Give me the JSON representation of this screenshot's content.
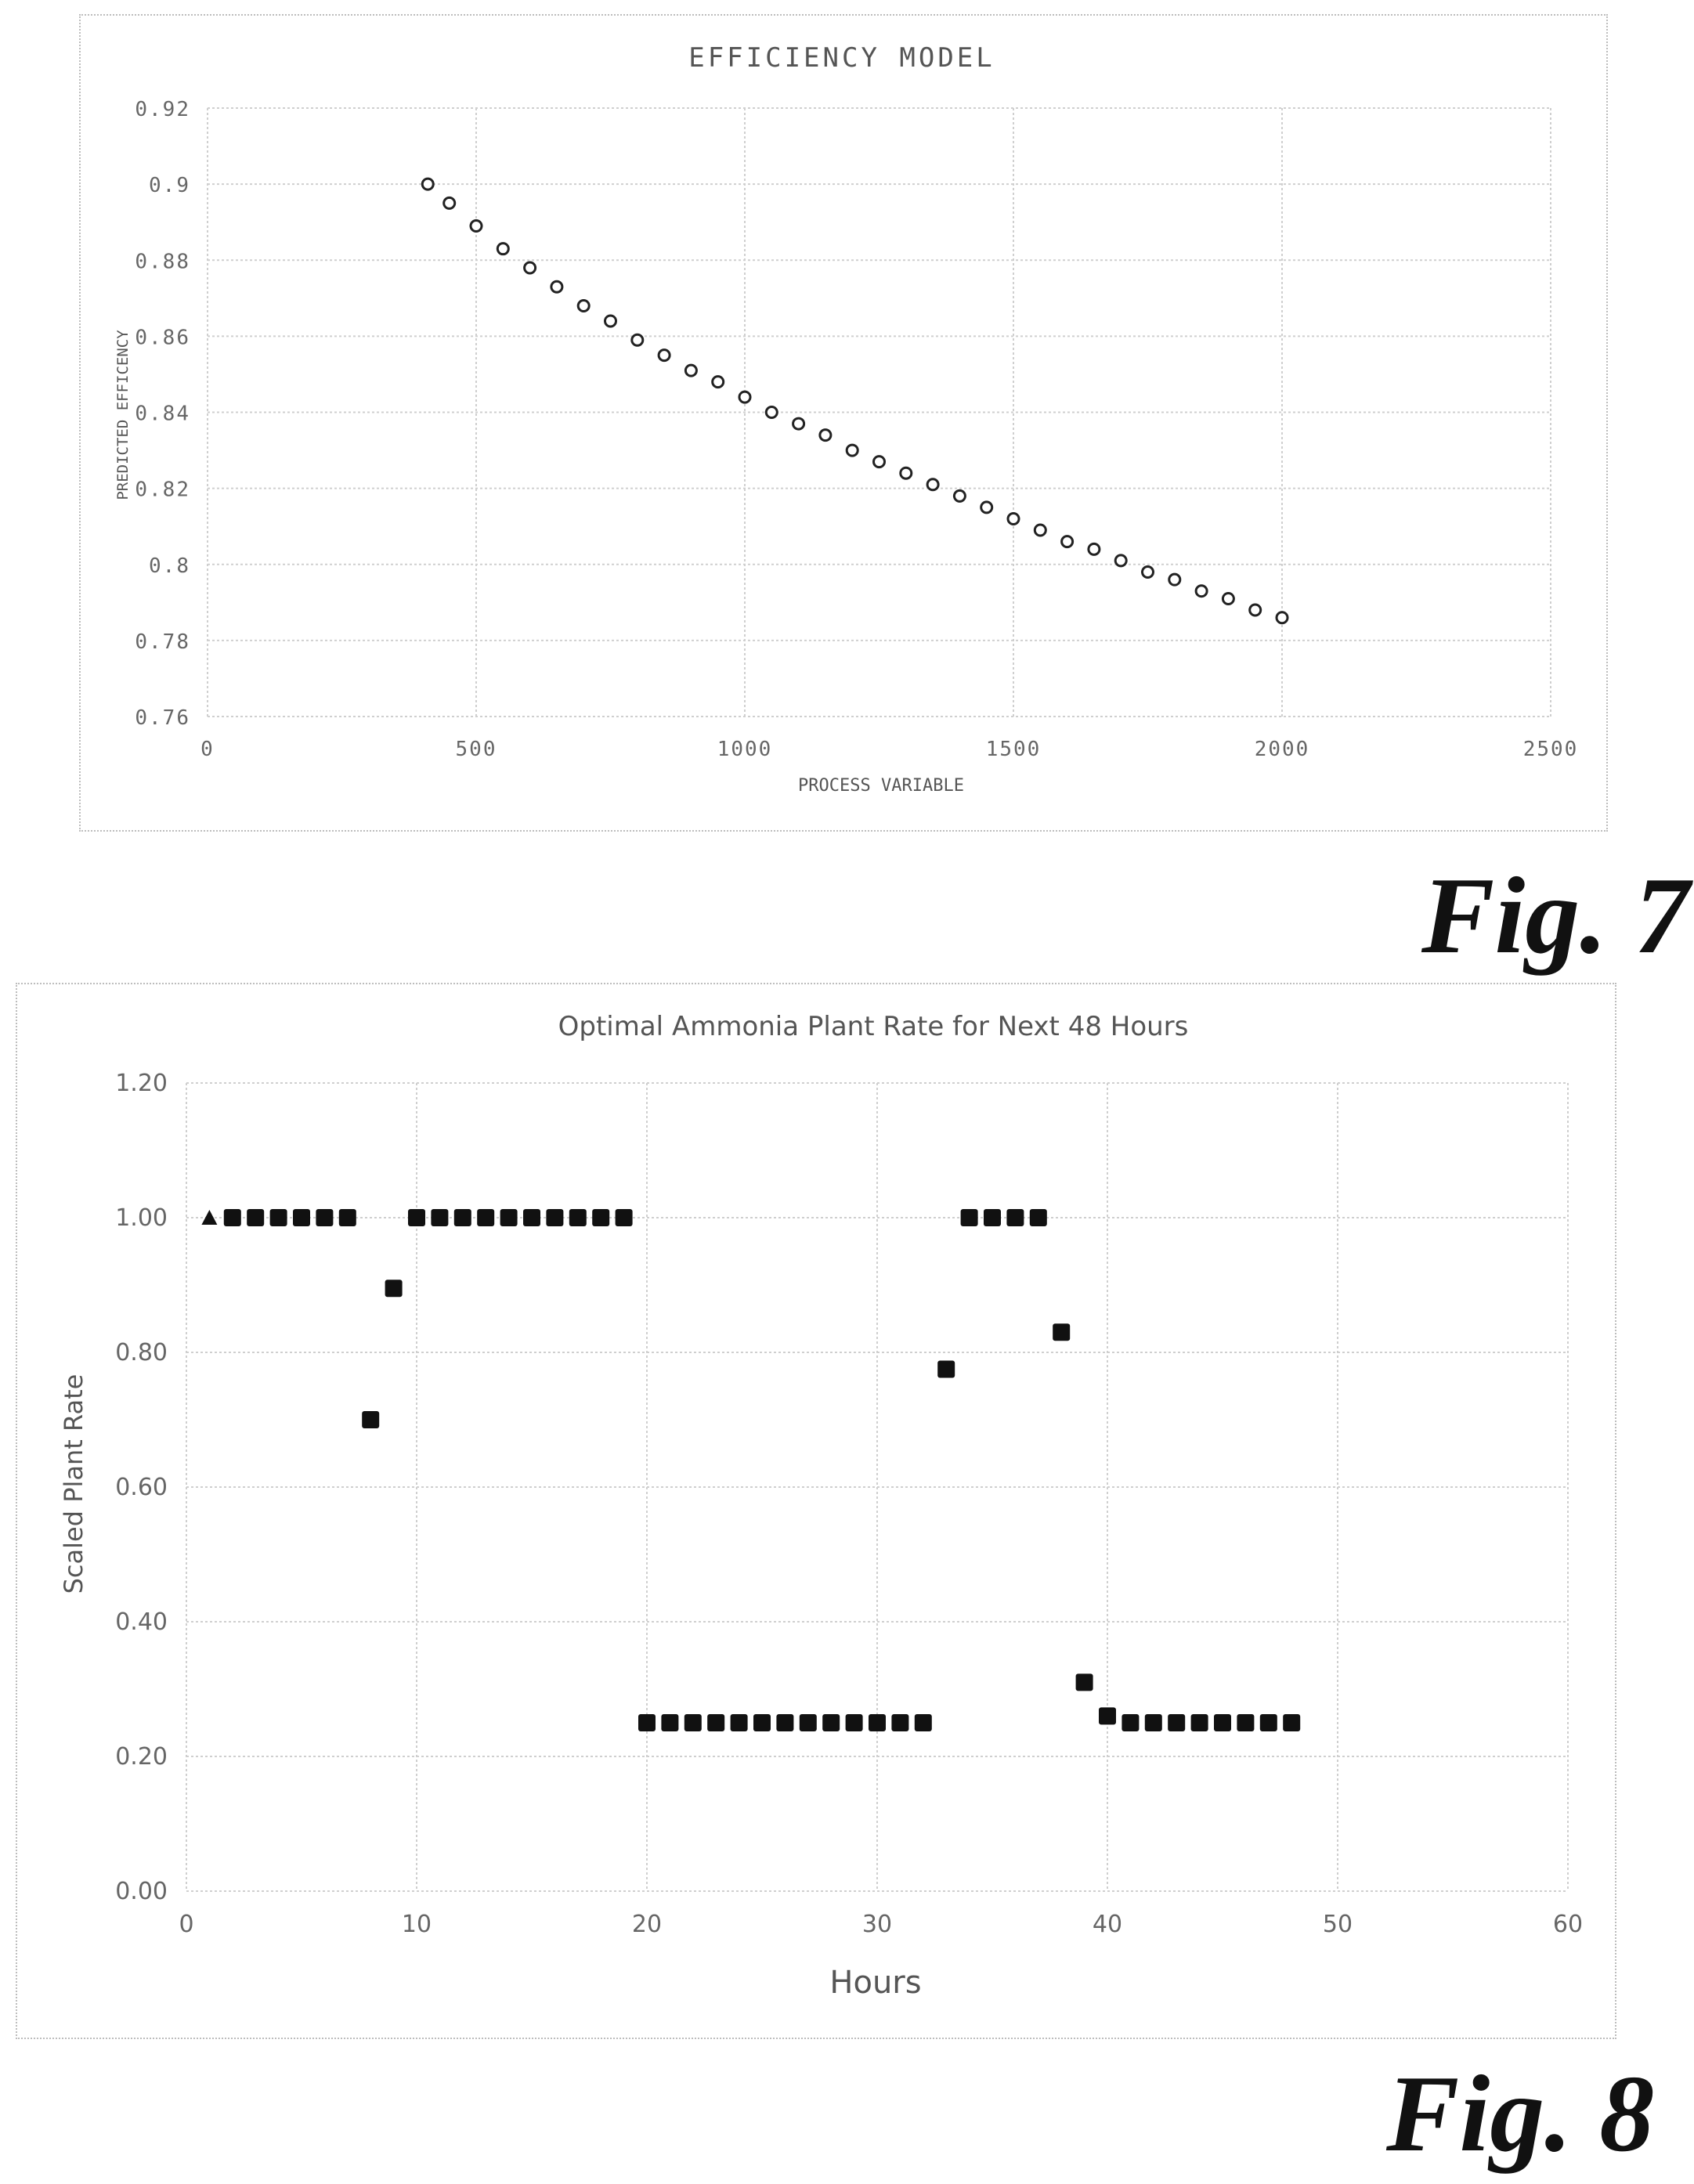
{
  "figures": {
    "fig7": {
      "label": "Fig. 7"
    },
    "fig8": {
      "label": "Fig. 8"
    }
  },
  "chart_data": [
    {
      "type": "scatter",
      "title": "EFFICIENCY MODEL",
      "xlabel": "PROCESS VARIABLE",
      "ylabel": "PREDICTED EFFICENCY",
      "xlim": [
        0,
        2500
      ],
      "ylim": [
        0.76,
        0.92
      ],
      "x_ticks": [
        "0",
        "500",
        "1000",
        "1500",
        "2000",
        "2500"
      ],
      "y_ticks": [
        "0.76",
        "0.78",
        "0.8",
        "0.82",
        "0.84",
        "0.86",
        "0.88",
        "0.9",
        "0.92"
      ],
      "grid": true,
      "legend": "none",
      "marker": "open-circle",
      "series": [
        {
          "x": [
            410,
            450,
            500,
            550,
            600,
            650,
            700,
            750,
            800,
            850,
            900,
            950,
            1000,
            1050,
            1100,
            1150,
            1200,
            1250,
            1300,
            1350,
            1400,
            1450,
            1500,
            1550,
            1600,
            1650,
            1700,
            1750,
            1800,
            1850,
            1900,
            1950,
            2000
          ],
          "y": [
            0.9,
            0.895,
            0.889,
            0.883,
            0.878,
            0.873,
            0.868,
            0.864,
            0.859,
            0.855,
            0.851,
            0.848,
            0.844,
            0.84,
            0.837,
            0.834,
            0.83,
            0.827,
            0.824,
            0.821,
            0.818,
            0.815,
            0.812,
            0.809,
            0.806,
            0.804,
            0.801,
            0.798,
            0.796,
            0.793,
            0.791,
            0.788,
            0.786
          ]
        }
      ]
    },
    {
      "type": "scatter",
      "title": "Optimal Ammonia Plant Rate for Next 48 Hours",
      "xlabel": "Hours",
      "ylabel": "Scaled Plant Rate",
      "xlim": [
        0,
        60
      ],
      "ylim": [
        0,
        1.2
      ],
      "x_ticks": [
        "0",
        "10",
        "20",
        "30",
        "40",
        "50",
        "60"
      ],
      "y_ticks": [
        "0.00",
        "0.20",
        "0.40",
        "0.60",
        "0.80",
        "1.00",
        "1.20"
      ],
      "grid": true,
      "legend": "none",
      "series": [
        {
          "marker": "triangle",
          "x": [
            1
          ],
          "y": [
            1.0
          ]
        },
        {
          "marker": "square",
          "x": [
            2,
            3,
            4,
            5,
            6,
            7,
            8,
            9,
            10,
            11,
            12,
            13,
            14,
            15,
            16,
            17,
            18,
            19,
            20,
            21,
            22,
            23,
            24,
            25,
            26,
            27,
            28,
            29,
            30,
            31,
            32,
            33,
            34,
            35,
            36,
            37,
            38,
            39,
            40,
            41,
            42,
            43,
            44,
            45,
            46,
            47,
            48
          ],
          "y": [
            1.0,
            1.0,
            1.0,
            1.0,
            1.0,
            1.0,
            0.7,
            0.895,
            1.0,
            1.0,
            1.0,
            1.0,
            1.0,
            1.0,
            1.0,
            1.0,
            1.0,
            1.0,
            0.25,
            0.25,
            0.25,
            0.25,
            0.25,
            0.25,
            0.25,
            0.25,
            0.25,
            0.25,
            0.25,
            0.25,
            0.25,
            0.775,
            1.0,
            1.0,
            1.0,
            1.0,
            0.83,
            0.31,
            0.26,
            0.25,
            0.25,
            0.25,
            0.25,
            0.25,
            0.25,
            0.25,
            0.25
          ]
        }
      ]
    }
  ]
}
